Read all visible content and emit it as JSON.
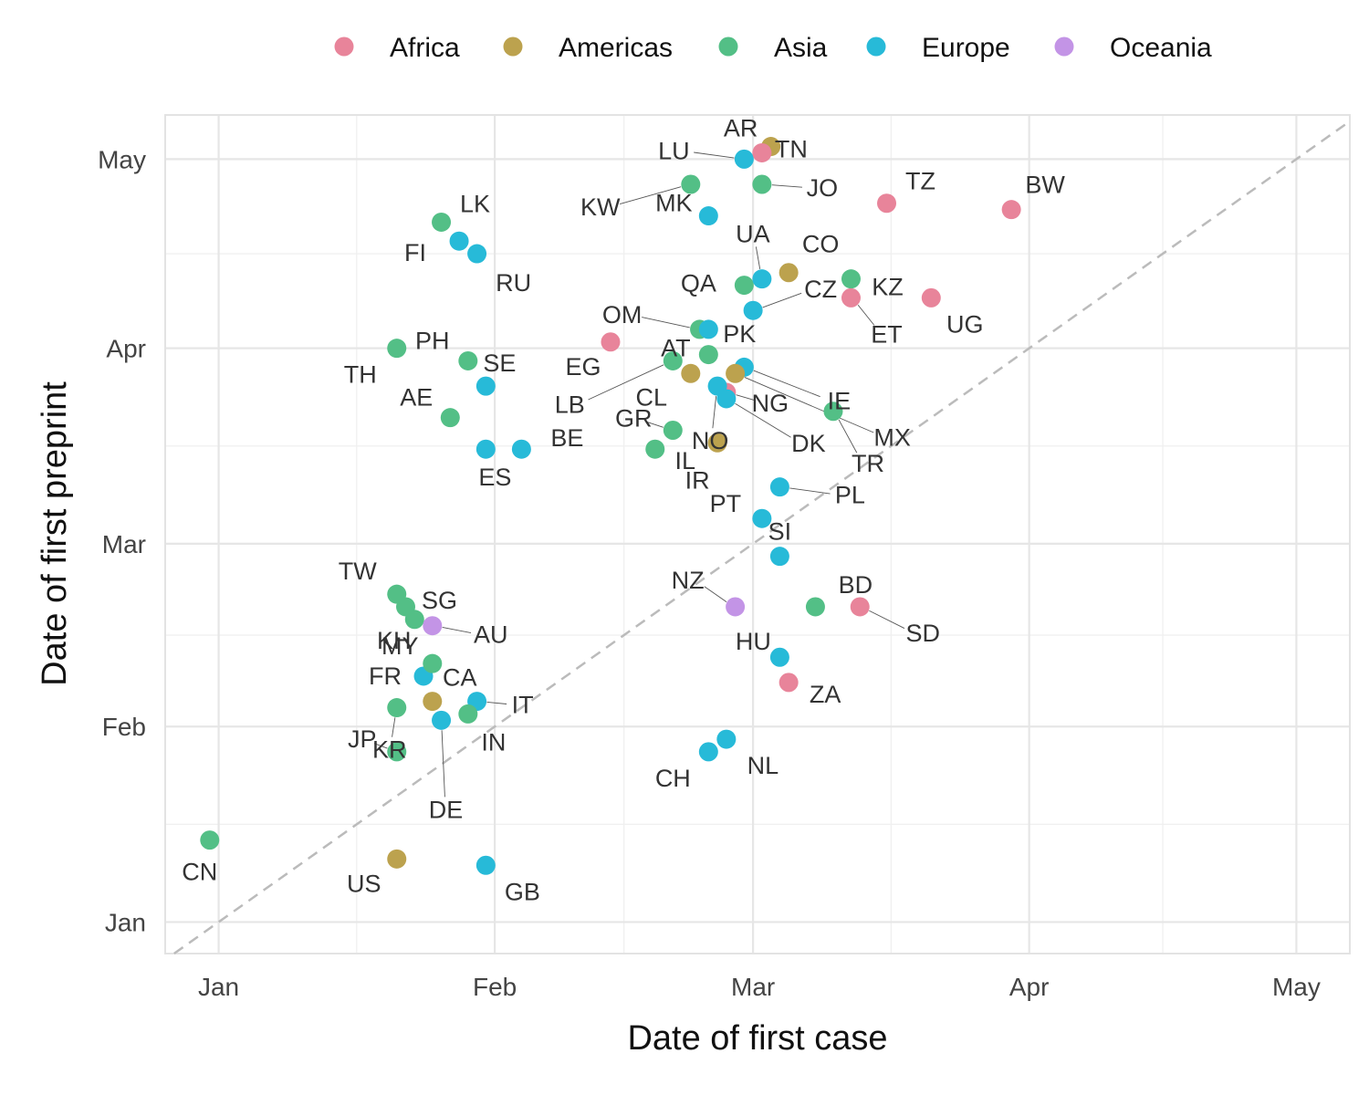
{
  "chart_data": {
    "type": "scatter",
    "title": "",
    "xlabel": "Date of first case",
    "ylabel": "Date of first preprint",
    "x_ticks": [
      "Jan",
      "Feb",
      "Mar",
      "Apr",
      "May"
    ],
    "y_ticks": [
      "Jan",
      "Feb",
      "Mar",
      "Apr",
      "May"
    ],
    "x_range": [
      "2019-12-26",
      "2020-05-07"
    ],
    "y_range": [
      "2019-12-27",
      "2020-05-08"
    ],
    "grid": true,
    "diagonal_reference_line": true,
    "legend": {
      "placement": "top",
      "entries": [
        {
          "name": "Africa",
          "color": "#E8849A"
        },
        {
          "name": "Americas",
          "color": "#BCA24E"
        },
        {
          "name": "Asia",
          "color": "#53BF86"
        },
        {
          "name": "Europe",
          "color": "#27BAD8"
        },
        {
          "name": "Oceania",
          "color": "#C394E6"
        }
      ]
    },
    "points": [
      {
        "label": "CN",
        "region": "Asia",
        "x": "2019-12-31",
        "y": "2020-01-14"
      },
      {
        "label": "US",
        "region": "Americas",
        "x": "2020-01-21",
        "y": "2020-01-11"
      },
      {
        "label": "GB",
        "region": "Europe",
        "x": "2020-01-31",
        "y": "2020-01-10"
      },
      {
        "label": "JP",
        "region": "Asia",
        "x": "2020-01-21",
        "y": "2020-01-28"
      },
      {
        "label": "FR",
        "region": "Europe",
        "x": "2020-01-24",
        "y": "2020-02-09"
      },
      {
        "label": "CA",
        "region": "Americas",
        "x": "2020-01-25",
        "y": "2020-02-05"
      },
      {
        "label": "IT",
        "region": "Europe",
        "x": "2020-01-30",
        "y": "2020-02-05"
      },
      {
        "label": "KR",
        "region": "Asia",
        "x": "2020-01-21",
        "y": "2020-02-04"
      },
      {
        "label": "DE",
        "region": "Europe",
        "x": "2020-01-26",
        "y": "2020-02-02"
      },
      {
        "label": "IN",
        "region": "Asia",
        "x": "2020-01-29",
        "y": "2020-02-03"
      },
      {
        "label": "KH",
        "region": "Asia",
        "x": "2020-01-25",
        "y": "2020-02-11"
      },
      {
        "label": "SG",
        "region": "Asia",
        "x": "2020-01-22",
        "y": "2020-02-20"
      },
      {
        "label": "MY",
        "region": "Asia",
        "x": "2020-01-23",
        "y": "2020-02-18"
      },
      {
        "label": "AU",
        "region": "Oceania",
        "x": "2020-01-25",
        "y": "2020-02-17"
      },
      {
        "label": "TW",
        "region": "Asia",
        "x": "2020-01-21",
        "y": "2020-02-22"
      },
      {
        "label": "AE",
        "region": "Asia",
        "x": "2020-01-27",
        "y": "2020-03-21"
      },
      {
        "label": "ES",
        "region": "Europe",
        "x": "2020-01-31",
        "y": "2020-03-16"
      },
      {
        "label": "BE",
        "region": "Europe",
        "x": "2020-02-04",
        "y": "2020-03-16"
      },
      {
        "label": "TH",
        "region": "Asia",
        "x": "2020-01-21",
        "y": "2020-04-01"
      },
      {
        "label": "PH",
        "region": "Asia",
        "x": "2020-01-29",
        "y": "2020-03-30"
      },
      {
        "label": "SE",
        "region": "Europe",
        "x": "2020-01-31",
        "y": "2020-03-26"
      },
      {
        "label": "LK",
        "region": "Asia",
        "x": "2020-01-26",
        "y": "2020-04-21"
      },
      {
        "label": "FI",
        "region": "Europe",
        "x": "2020-01-28",
        "y": "2020-04-18"
      },
      {
        "label": "RU",
        "region": "Europe",
        "x": "2020-01-30",
        "y": "2020-04-16"
      },
      {
        "label": "EG",
        "region": "Africa",
        "x": "2020-02-14",
        "y": "2020-04-02"
      },
      {
        "label": "LB",
        "region": "Asia",
        "x": "2020-02-21",
        "y": "2020-03-30"
      },
      {
        "label": "CL",
        "region": "Americas",
        "x": "2020-02-23",
        "y": "2020-03-28"
      },
      {
        "label": "AT",
        "region": "Asia",
        "x": "2020-02-25",
        "y": "2020-03-31"
      },
      {
        "label": "IE",
        "region": "Europe",
        "x": "2020-02-29",
        "y": "2020-03-29"
      },
      {
        "label": "MX",
        "region": "Americas",
        "x": "2020-02-28",
        "y": "2020-03-28"
      },
      {
        "label": "NG",
        "region": "Africa",
        "x": "2020-02-27",
        "y": "2020-03-25"
      },
      {
        "label": "NO",
        "region": "Europe",
        "x": "2020-02-26",
        "y": "2020-03-26"
      },
      {
        "label": "DK",
        "region": "Europe",
        "x": "2020-02-27",
        "y": "2020-03-24"
      },
      {
        "label": "GR",
        "region": "Asia",
        "x": "2020-02-21",
        "y": "2020-03-19"
      },
      {
        "label": "IL",
        "region": "Asia",
        "x": "2020-02-19",
        "y": "2020-03-16"
      },
      {
        "label": "IR",
        "region": "Americas",
        "x": "2020-02-26",
        "y": "2020-03-17"
      },
      {
        "label": "OM",
        "region": "Asia",
        "x": "2020-02-24",
        "y": "2020-04-04"
      },
      {
        "label": "QA",
        "region": "Asia",
        "x": "2020-02-29",
        "y": "2020-04-11"
      },
      {
        "label": "CZ",
        "region": "Europe",
        "x": "2020-03-01",
        "y": "2020-04-07"
      },
      {
        "label": "PK",
        "region": "Europe",
        "x": "2020-02-25",
        "y": "2020-04-04"
      },
      {
        "label": "UA",
        "region": "Europe",
        "x": "2020-03-02",
        "y": "2020-04-12"
      },
      {
        "label": "CO",
        "region": "Americas",
        "x": "2020-03-05",
        "y": "2020-04-13"
      },
      {
        "label": "KZ",
        "region": "Asia",
        "x": "2020-03-12",
        "y": "2020-04-12"
      },
      {
        "label": "ET",
        "region": "Africa",
        "x": "2020-03-12",
        "y": "2020-04-09"
      },
      {
        "label": "UG",
        "region": "Africa",
        "x": "2020-03-21",
        "y": "2020-04-09"
      },
      {
        "label": "TR",
        "region": "Asia",
        "x": "2020-03-10",
        "y": "2020-03-22"
      },
      {
        "label": "MK",
        "region": "Europe",
        "x": "2020-02-25",
        "y": "2020-04-22"
      },
      {
        "label": "KW",
        "region": "Asia",
        "x": "2020-02-23",
        "y": "2020-04-27"
      },
      {
        "label": "LU",
        "region": "Europe",
        "x": "2020-02-29",
        "y": "2020-05-01"
      },
      {
        "label": "AR",
        "region": "Americas",
        "x": "2020-03-03",
        "y": "2020-05-03"
      },
      {
        "label": "TN",
        "region": "Africa",
        "x": "2020-03-02",
        "y": "2020-05-02"
      },
      {
        "label": "JO",
        "region": "Asia",
        "x": "2020-03-02",
        "y": "2020-04-27"
      },
      {
        "label": "TZ",
        "region": "Africa",
        "x": "2020-03-16",
        "y": "2020-04-24"
      },
      {
        "label": "BW",
        "region": "Africa",
        "x": "2020-03-30",
        "y": "2020-04-23"
      },
      {
        "label": "PL",
        "region": "Europe",
        "x": "2020-03-04",
        "y": "2020-03-10"
      },
      {
        "label": "PT",
        "region": "Europe",
        "x": "2020-03-02",
        "y": "2020-03-05"
      },
      {
        "label": "SI",
        "region": "Europe",
        "x": "2020-03-04",
        "y": "2020-02-28"
      },
      {
        "label": "NZ",
        "region": "Oceania",
        "x": "2020-02-28",
        "y": "2020-02-20"
      },
      {
        "label": "BD",
        "region": "Asia",
        "x": "2020-03-08",
        "y": "2020-02-20"
      },
      {
        "label": "SD",
        "region": "Africa",
        "x": "2020-03-13",
        "y": "2020-02-20"
      },
      {
        "label": "HU",
        "region": "Europe",
        "x": "2020-03-04",
        "y": "2020-02-12"
      },
      {
        "label": "ZA",
        "region": "Africa",
        "x": "2020-03-05",
        "y": "2020-02-08"
      },
      {
        "label": "NL",
        "region": "Europe",
        "x": "2020-02-27",
        "y": "2020-01-30"
      },
      {
        "label": "CH",
        "region": "Europe",
        "x": "2020-02-25",
        "y": "2020-01-28"
      }
    ]
  }
}
